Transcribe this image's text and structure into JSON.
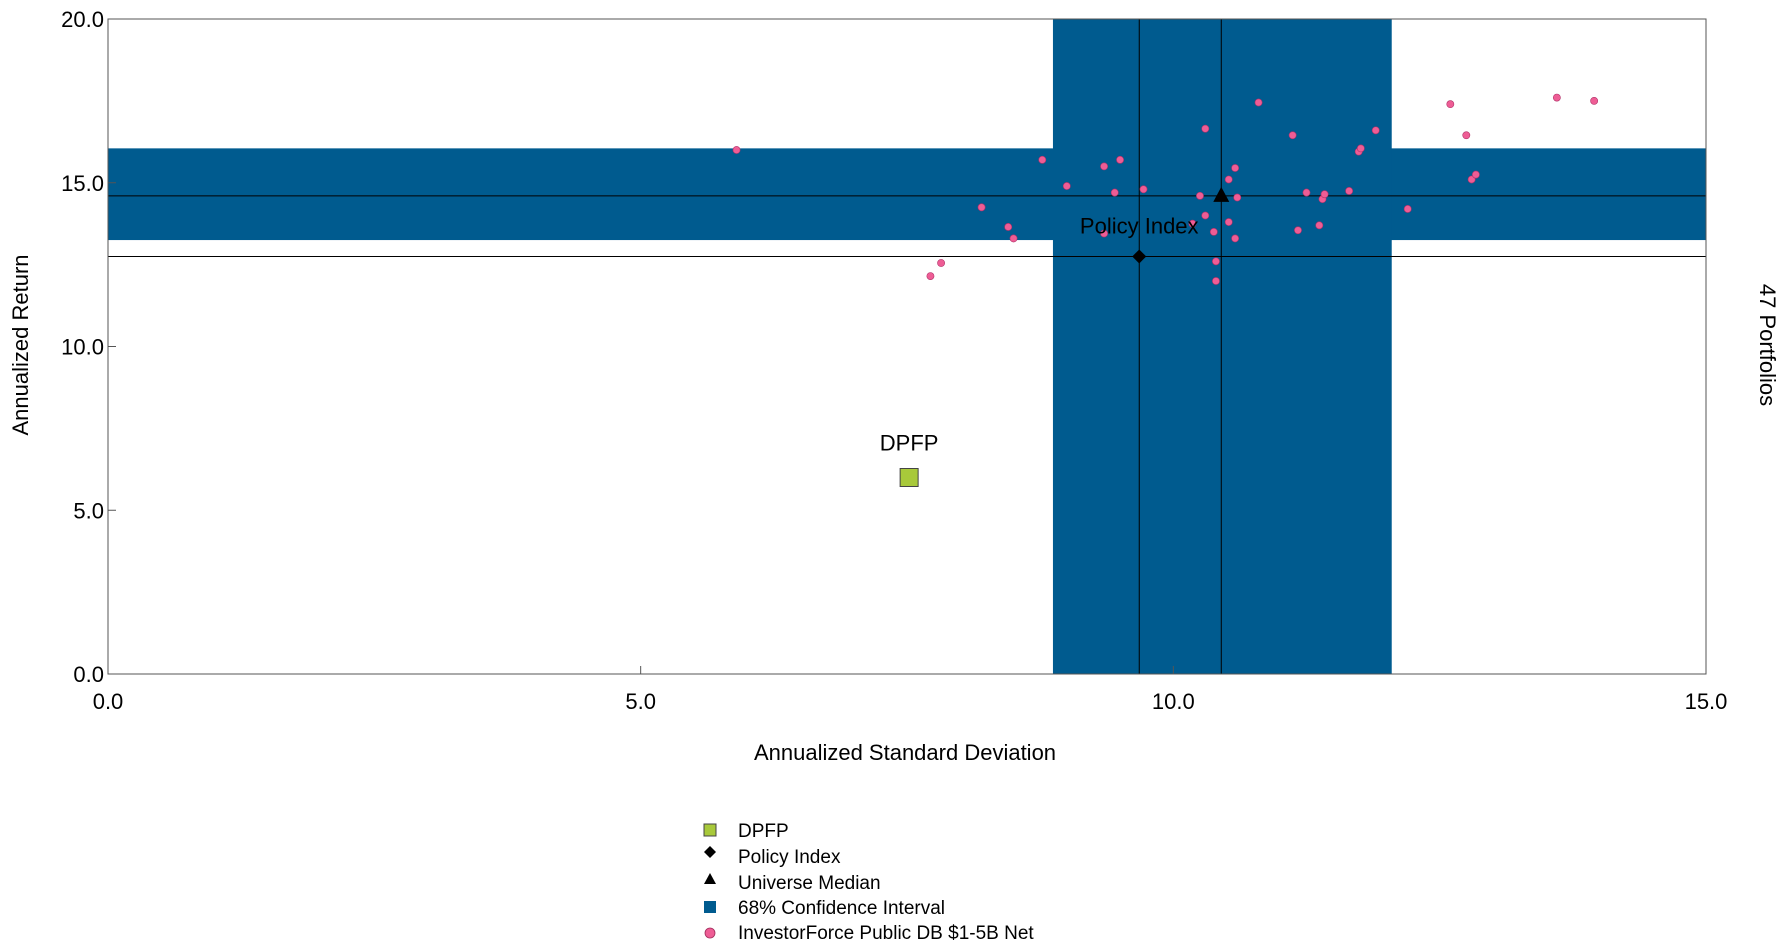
{
  "colors": {
    "confidence_band": "#005b8f",
    "dpfp": "#a8c93a",
    "universe_dots": "#ee5d95",
    "marker": "#000000"
  },
  "side_label": "47 Portfolios",
  "chart_data": {
    "type": "scatter",
    "xlabel": "Annualized Standard Deviation",
    "ylabel": "Annualized Return",
    "xlim": [
      0.0,
      15.0
    ],
    "ylim": [
      0.0,
      20.0
    ],
    "x_ticks": [
      "0.0",
      "5.0",
      "10.0",
      "15.0"
    ],
    "y_ticks": [
      "0.0",
      "5.0",
      "10.0",
      "15.0",
      "20.0"
    ],
    "confidence_interval": {
      "label": "68% Confidence Interval",
      "x_range": [
        8.87,
        12.05
      ],
      "y_range": [
        13.25,
        16.05
      ]
    },
    "universe_median": {
      "label": "Universe Median",
      "x": 10.45,
      "y": 14.6
    },
    "policy_index": {
      "label": "Policy Index",
      "x": 9.68,
      "y": 12.75
    },
    "dpfp": {
      "label": "DPFP",
      "x": 7.52,
      "y": 6.0
    },
    "universe": {
      "label": "InvestorForce Public DB $1-5B Net",
      "points": [
        [
          5.9,
          16.0
        ],
        [
          7.72,
          12.15
        ],
        [
          7.82,
          12.55
        ],
        [
          8.2,
          14.25
        ],
        [
          8.45,
          13.65
        ],
        [
          8.5,
          13.3
        ],
        [
          8.77,
          15.7
        ],
        [
          9.0,
          14.9
        ],
        [
          9.35,
          15.5
        ],
        [
          9.35,
          13.45
        ],
        [
          9.45,
          14.7
        ],
        [
          9.5,
          15.7
        ],
        [
          9.72,
          14.8
        ],
        [
          10.18,
          13.75
        ],
        [
          10.25,
          14.6
        ],
        [
          10.3,
          14.0
        ],
        [
          10.3,
          16.65
        ],
        [
          10.38,
          13.5
        ],
        [
          10.4,
          12.6
        ],
        [
          10.4,
          12.0
        ],
        [
          10.52,
          13.8
        ],
        [
          10.52,
          15.1
        ],
        [
          10.58,
          15.45
        ],
        [
          10.58,
          13.3
        ],
        [
          10.6,
          14.55
        ],
        [
          10.8,
          17.45
        ],
        [
          11.12,
          16.45
        ],
        [
          11.17,
          13.55
        ],
        [
          11.25,
          14.7
        ],
        [
          11.37,
          13.7
        ],
        [
          11.4,
          14.5
        ],
        [
          11.42,
          14.65
        ],
        [
          11.65,
          14.75
        ],
        [
          11.74,
          15.95
        ],
        [
          11.76,
          16.05
        ],
        [
          11.9,
          16.6
        ],
        [
          12.2,
          14.2
        ],
        [
          12.6,
          17.4
        ],
        [
          12.75,
          16.45
        ],
        [
          12.8,
          15.1
        ],
        [
          12.84,
          15.25
        ],
        [
          13.6,
          17.6
        ],
        [
          13.95,
          17.5
        ]
      ]
    }
  }
}
